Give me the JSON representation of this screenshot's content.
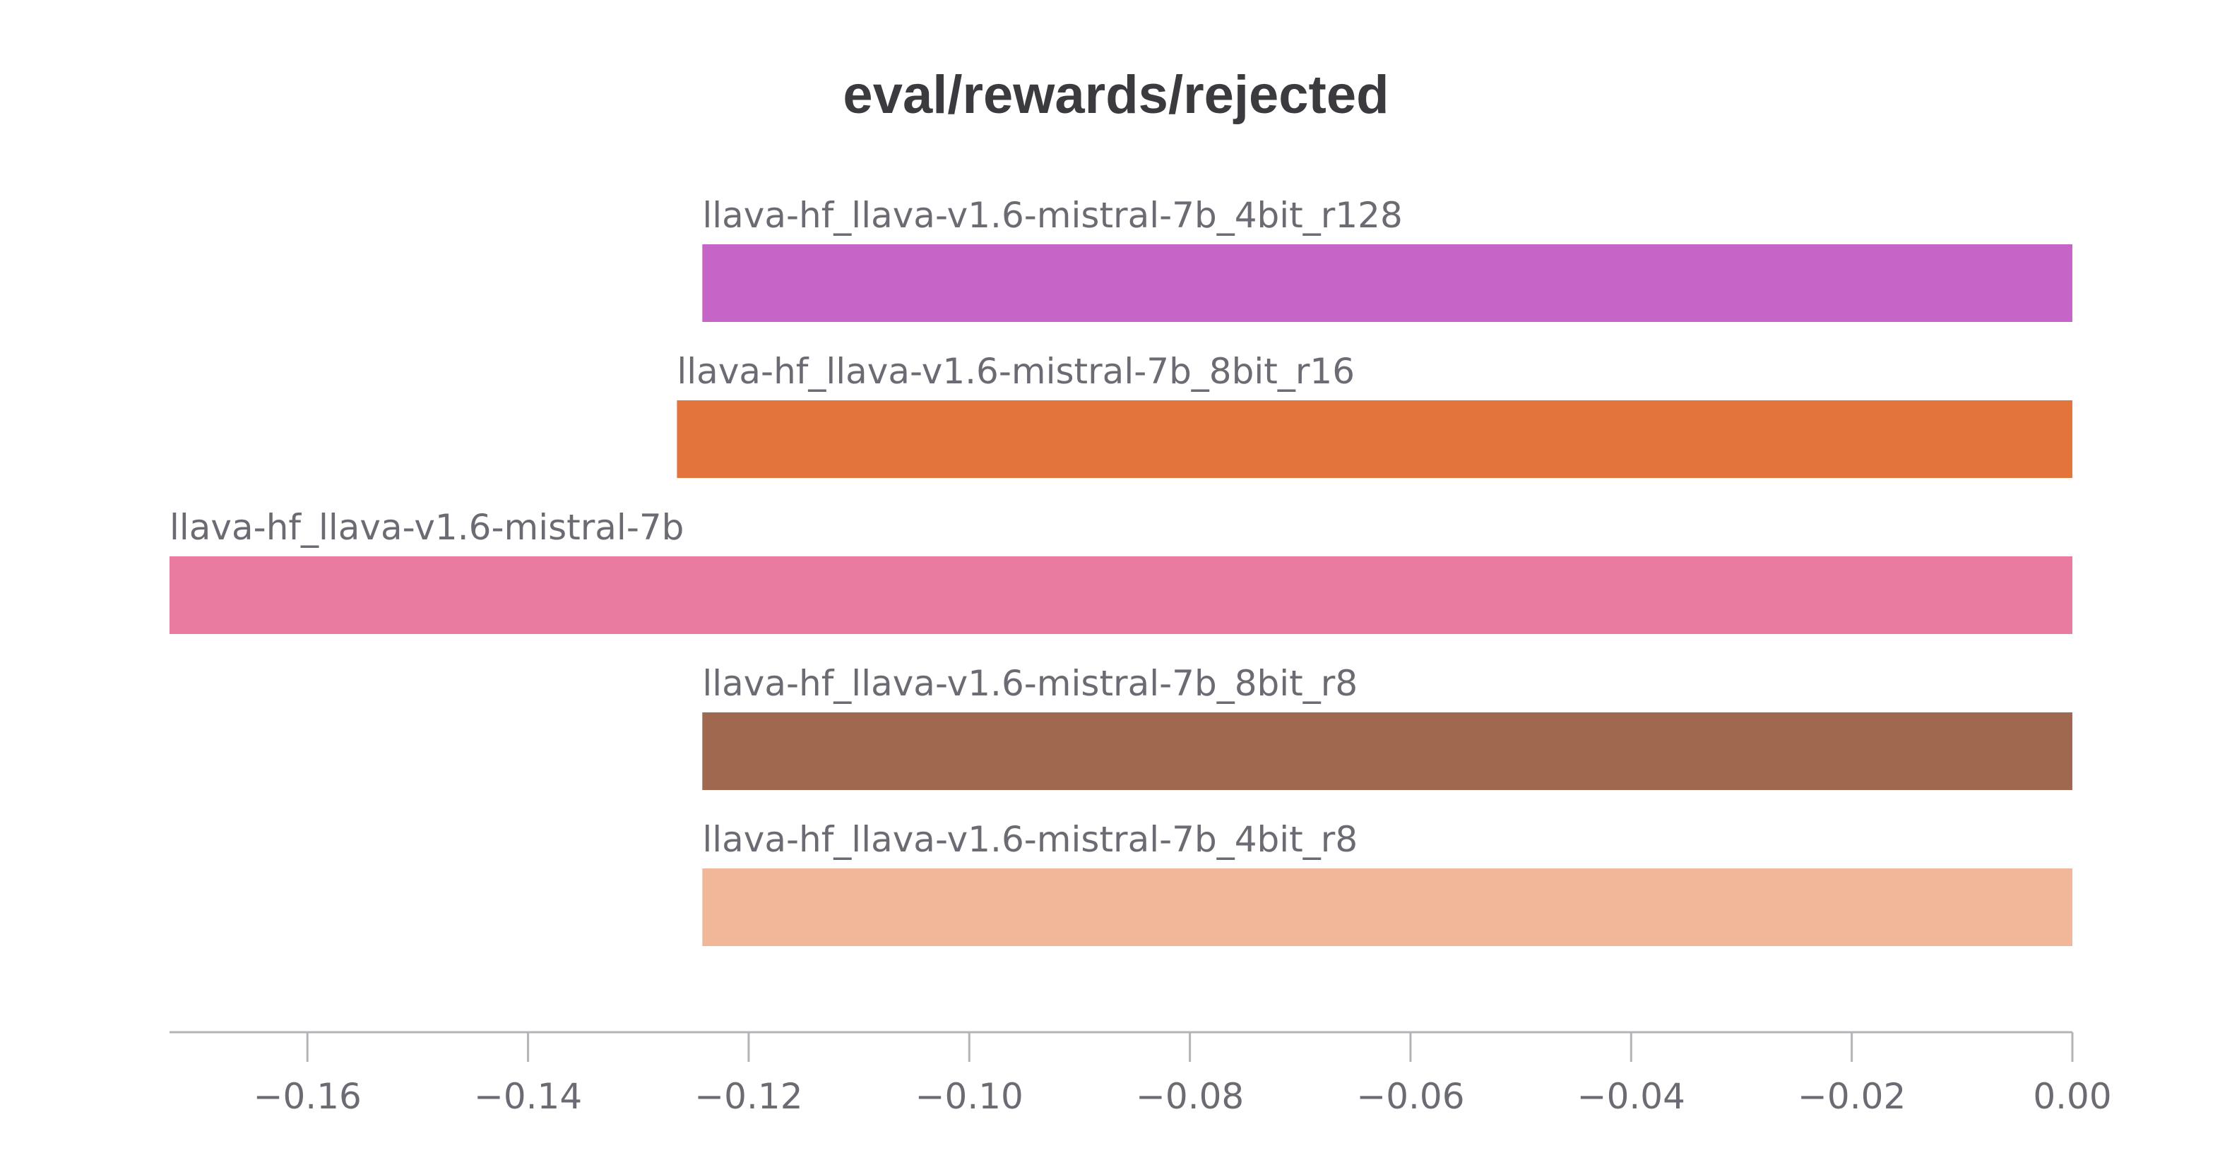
{
  "chart_data": {
    "type": "bar",
    "orientation": "horizontal",
    "title": "eval/rewards/rejected",
    "xlabel": "",
    "ylabel": "",
    "grid": false,
    "xlim": [
      -0.1725,
      0.0
    ],
    "series": [
      {
        "name": "llava-hf_llava-v1.6-mistral-7b_4bit_r128",
        "value": -0.1242,
        "color": "#c565c7"
      },
      {
        "name": "llava-hf_llava-v1.6-mistral-7b_8bit_r16",
        "value": -0.1265,
        "color": "#e3743b"
      },
      {
        "name": "llava-hf_llava-v1.6-mistral-7b",
        "value": -0.1725,
        "color": "#e87b9f"
      },
      {
        "name": "llava-hf_llava-v1.6-mistral-7b_8bit_r8",
        "value": -0.1242,
        "color": "#a0684f"
      },
      {
        "name": "llava-hf_llava-v1.6-mistral-7b_4bit_r8",
        "value": -0.1242,
        "color": "#f0b899"
      }
    ],
    "x_ticks": [
      -0.16,
      -0.14,
      -0.12,
      -0.1,
      -0.08,
      -0.06,
      -0.04,
      -0.02,
      0.0
    ],
    "x_tick_labels": [
      "−0.16",
      "−0.14",
      "−0.12",
      "−0.10",
      "−0.08",
      "−0.06",
      "−0.04",
      "−0.02",
      "0.00"
    ]
  }
}
